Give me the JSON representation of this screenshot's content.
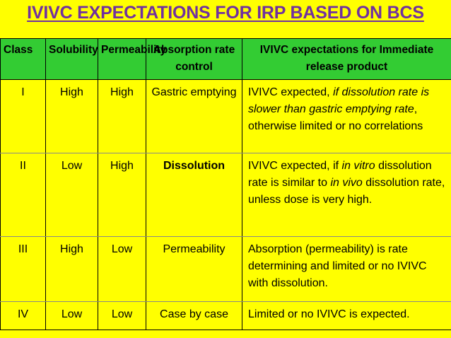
{
  "title": "IVIVC EXPECTATIONS FOR IRP BASED ON BCS",
  "colors": {
    "title": "#7030a0",
    "header_bg": "#33cc33",
    "background": "#ffff00"
  },
  "headers": {
    "class": "Class",
    "solubility": "Solubility",
    "permeability": "Permeability",
    "absorption": "Absorption rate control",
    "ivivc": "IVIVC expectations for Immediate release product"
  },
  "rows": [
    {
      "class": "I",
      "solubility": "High",
      "permeability": "High",
      "absorption": "Gastric emptying",
      "ivivc_parts": [
        {
          "text": "IVIVC expected, ",
          "italic": false
        },
        {
          "text": "if dissolution rate is slower than gastric emptying rate",
          "italic": true
        },
        {
          "text": ", otherwise limited or no correlations",
          "italic": false
        }
      ]
    },
    {
      "class": "II",
      "solubility": "Low",
      "permeability": "High",
      "absorption": "Dissolution",
      "ivivc_parts": [
        {
          "text": "IVIVC expected, if ",
          "italic": false
        },
        {
          "text": "in vitro",
          "italic": true
        },
        {
          "text": " dissolution rate is similar to ",
          "italic": false
        },
        {
          "text": "in vivo",
          "italic": true
        },
        {
          "text": " dissolution rate, unless dose is very high.",
          "italic": false
        }
      ]
    },
    {
      "class": "III",
      "solubility": "High",
      "permeability": "Low",
      "absorption": "Permeability",
      "ivivc_parts": [
        {
          "text": "Absorption (permeability) is rate determining and limited or no IVIVC with dissolution.",
          "italic": false
        }
      ]
    },
    {
      "class": "IV",
      "solubility": "Low",
      "permeability": "Low",
      "absorption": "Case by case",
      "ivivc_parts": [
        {
          "text": "Limited or no IVIVC is expected.",
          "italic": false
        }
      ]
    }
  ]
}
